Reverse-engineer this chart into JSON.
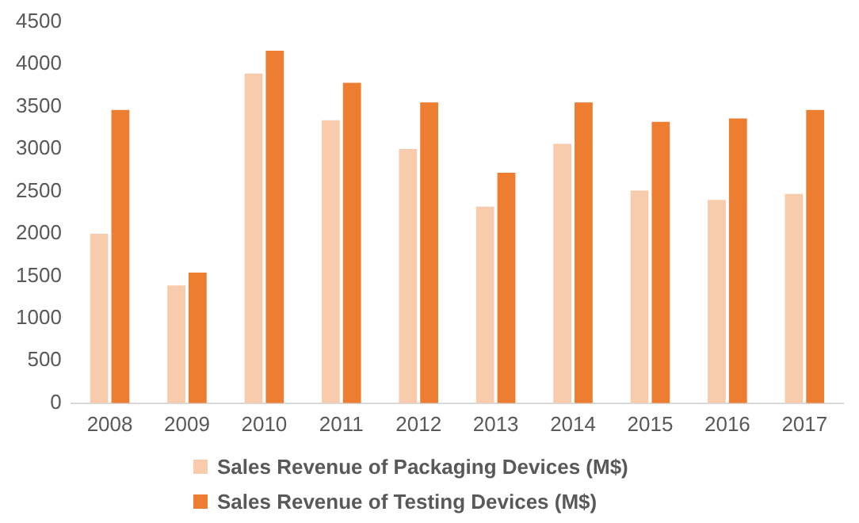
{
  "chart_data": {
    "type": "bar",
    "categories": [
      "2008",
      "2009",
      "2010",
      "2011",
      "2012",
      "2013",
      "2014",
      "2015",
      "2016",
      "2017"
    ],
    "series": [
      {
        "name": "Sales Revenue of Packaging Devices (M$)",
        "color": "#f8cbad",
        "values": [
          2000,
          1390,
          3890,
          3340,
          3000,
          2320,
          3060,
          2510,
          2400,
          2470
        ]
      },
      {
        "name": "Sales Revenue of Testing Devices (M$)",
        "color": "#ed7d31",
        "values": [
          3460,
          1540,
          4160,
          3780,
          3550,
          2720,
          3550,
          3320,
          3360,
          3460
        ]
      }
    ],
    "ylim": [
      0,
      4500
    ],
    "yticks": [
      0,
      500,
      1000,
      1500,
      2000,
      2500,
      3000,
      3500,
      4000,
      4500
    ],
    "grid": false,
    "legend": "bottom"
  }
}
